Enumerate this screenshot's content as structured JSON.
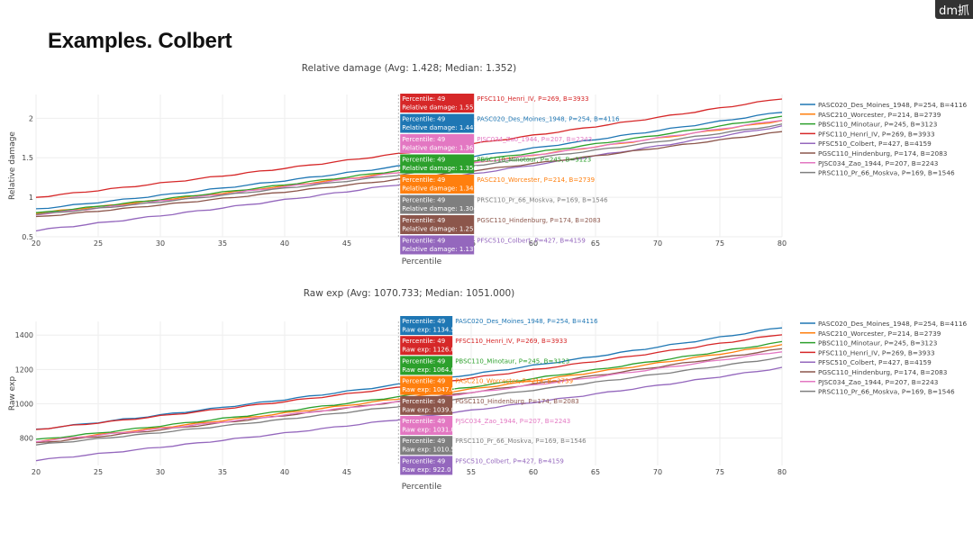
{
  "slide": {
    "title": "Examples. Colbert",
    "watermark": "dm抓"
  },
  "colors": {
    "PASC020_Des_Moines_1948, P=254, B=4116": "#1f77b4",
    "PASC210_Worcester, P=214, B=2739": "#ff7f0e",
    "PBSC110_Minotaur, P=245, B=3123": "#2ca02c",
    "PFSC110_Henri_IV, P=269, B=3933": "#d62728",
    "PFSC510_Colbert, P=427, B=4159": "#9467bd",
    "PGSC110_Hindenburg, P=174, B=2083": "#8c564b",
    "PJSC034_Zao_1944, P=207, B=2243": "#e377c2",
    "PRSC110_Pr_66_Moskva, P=169, B=1546": "#7f7f7f"
  },
  "chart_data": [
    {
      "type": "line",
      "title": "Relative damage (Avg: 1.428; Median: 1.352)",
      "xlabel": "Percentile",
      "ylabel": "Relative damage",
      "xlim": [
        20,
        80
      ],
      "ylim": [
        0.5,
        2.3
      ],
      "xticks": [
        20,
        25,
        30,
        35,
        40,
        45,
        50,
        55,
        60,
        65,
        70,
        75,
        80
      ],
      "yticks": [
        0.5,
        1,
        1.5,
        2
      ],
      "hover_x": 49,
      "hover_label_key": "Relative damage",
      "hover_name_key": "Percentile",
      "series": [
        {
          "name": "PASC020_Des_Moines_1948, P=254, B=4116",
          "start": 0.85,
          "end": 2.08,
          "hover_value": "1.441"
        },
        {
          "name": "PASC210_Worcester, P=214, B=2739",
          "start": 0.8,
          "end": 1.97,
          "hover_value": "1.341"
        },
        {
          "name": "PBSC110_Minotaur, P=245, B=3123",
          "start": 0.8,
          "end": 2.02,
          "hover_value": "1.354"
        },
        {
          "name": "PFSC110_Henri_IV, P=269, B=3933",
          "start": 1.0,
          "end": 2.25,
          "hover_value": "1.55"
        },
        {
          "name": "PFSC510_Colbert, P=427, B=4159",
          "start": 0.58,
          "end": 1.9,
          "hover_value": "1.137"
        },
        {
          "name": "PGSC110_Hindenburg, P=174, B=2083",
          "start": 0.75,
          "end": 1.83,
          "hover_value": "1.25"
        },
        {
          "name": "PJSC034_Zao_1944, P=207, B=2243",
          "start": 0.78,
          "end": 1.98,
          "hover_value": "1.363"
        },
        {
          "name": "PRSC110_Pr_66_Moskva, P=169, B=1546",
          "start": 0.78,
          "end": 1.92,
          "hover_value": "1.304"
        }
      ],
      "hover_order": [
        "PFSC110_Henri_IV, P=269, B=3933",
        "PASC020_Des_Moines_1948, P=254, B=4116",
        "PJSC034_Zao_1944, P=207, B=2243",
        "PBSC110_Minotaur, P=245, B=3123",
        "PASC210_Worcester, P=214, B=2739",
        "PRSC110_Pr_66_Moskva, P=169, B=1546",
        "PGSC110_Hindenburg, P=174, B=2083",
        "PFSC510_Colbert, P=427, B=4159"
      ],
      "legend_order": [
        "PASC020_Des_Moines_1948, P=254, B=4116",
        "PASC210_Worcester, P=214, B=2739",
        "PBSC110_Minotaur, P=245, B=3123",
        "PFSC110_Henri_IV, P=269, B=3933",
        "PFSC510_Colbert, P=427, B=4159",
        "PGSC110_Hindenburg, P=174, B=2083",
        "PJSC034_Zao_1944, P=207, B=2243",
        "PRSC110_Pr_66_Moskva, P=169, B=1546"
      ]
    },
    {
      "type": "line",
      "title": "Raw exp (Avg: 1070.733; Median: 1051.000)",
      "xlabel": "Percentile",
      "ylabel": "Raw exp",
      "xlim": [
        20,
        80
      ],
      "ylim": [
        640,
        1480
      ],
      "xticks": [
        20,
        25,
        30,
        35,
        40,
        45,
        50,
        55,
        60,
        65,
        70,
        75,
        80
      ],
      "yticks": [
        800,
        1000,
        1200,
        1400
      ],
      "hover_x": 49,
      "hover_label_key": "Raw exp",
      "hover_name_key": "Percentile",
      "series": [
        {
          "name": "PASC020_Des_Moines_1948, P=254, B=4116",
          "start": 850,
          "end": 1445,
          "hover_value": "1134.5"
        },
        {
          "name": "PASC210_Worcester, P=214, B=2739",
          "start": 780,
          "end": 1345,
          "hover_value": "1047.0"
        },
        {
          "name": "PBSC110_Minotaur, P=245, B=3123",
          "start": 790,
          "end": 1360,
          "hover_value": "1064.0"
        },
        {
          "name": "PFSC110_Henri_IV, P=269, B=3933",
          "start": 850,
          "end": 1405,
          "hover_value": "1126.0"
        },
        {
          "name": "PFSC510_Colbert, P=427, B=4159",
          "start": 670,
          "end": 1210,
          "hover_value": "922.0"
        },
        {
          "name": "PGSC110_Hindenburg, P=174, B=2083",
          "start": 770,
          "end": 1320,
          "hover_value": "1039.0"
        },
        {
          "name": "PJSC034_Zao_1944, P=207, B=2243",
          "start": 780,
          "end": 1305,
          "hover_value": "1031.0"
        },
        {
          "name": "PRSC110_Pr_66_Moskva, P=169, B=1546",
          "start": 760,
          "end": 1270,
          "hover_value": "1010.5"
        }
      ],
      "hover_order": [
        "PASC020_Des_Moines_1948, P=254, B=4116",
        "PFSC110_Henri_IV, P=269, B=3933",
        "PBSC110_Minotaur, P=245, B=3123",
        "PASC210_Worcester, P=214, B=2739",
        "PGSC110_Hindenburg, P=174, B=2083",
        "PJSC034_Zao_1944, P=207, B=2243",
        "PRSC110_Pr_66_Moskva, P=169, B=1546",
        "PFSC510_Colbert, P=427, B=4159"
      ],
      "legend_order": [
        "PASC020_Des_Moines_1948, P=254, B=4116",
        "PASC210_Worcester, P=214, B=2739",
        "PBSC110_Minotaur, P=245, B=3123",
        "PFSC110_Henri_IV, P=269, B=3933",
        "PFSC510_Colbert, P=427, B=4159",
        "PGSC110_Hindenburg, P=174, B=2083",
        "PJSC034_Zao_1944, P=207, B=2243",
        "PRSC110_Pr_66_Moskva, P=169, B=1546"
      ]
    }
  ]
}
